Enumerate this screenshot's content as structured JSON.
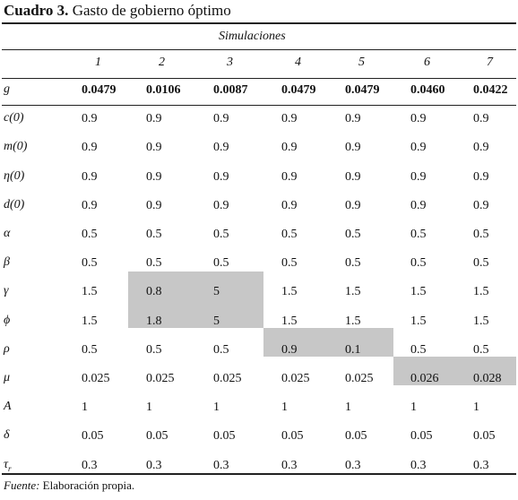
{
  "table": {
    "label": "Cuadro 3.",
    "title": "Gasto de gobierno óptimo",
    "group_header": "Simulaciones",
    "columns": [
      "1",
      "2",
      "3",
      "4",
      "5",
      "6",
      "7"
    ],
    "rows": [
      {
        "param": "g",
        "sub": "",
        "values": [
          "0.0479",
          "0.0106",
          "0.0087",
          "0.0479",
          "0.0479",
          "0.0460",
          "0.0422"
        ]
      },
      {
        "param": "c(0)",
        "sub": "",
        "values": [
          "0.9",
          "0.9",
          "0.9",
          "0.9",
          "0.9",
          "0.9",
          "0.9"
        ]
      },
      {
        "param": "m(0)",
        "sub": "",
        "values": [
          "0.9",
          "0.9",
          "0.9",
          "0.9",
          "0.9",
          "0.9",
          "0.9"
        ]
      },
      {
        "param": "η(0)",
        "sub": "",
        "values": [
          "0.9",
          "0.9",
          "0.9",
          "0.9",
          "0.9",
          "0.9",
          "0.9"
        ]
      },
      {
        "param": "d(0)",
        "sub": "",
        "values": [
          "0.9",
          "0.9",
          "0.9",
          "0.9",
          "0.9",
          "0.9",
          "0.9"
        ]
      },
      {
        "param": "α",
        "sub": "",
        "values": [
          "0.5",
          "0.5",
          "0.5",
          "0.5",
          "0.5",
          "0.5",
          "0.5"
        ]
      },
      {
        "param": "β",
        "sub": "",
        "values": [
          "0.5",
          "0.5",
          "0.5",
          "0.5",
          "0.5",
          "0.5",
          "0.5"
        ]
      },
      {
        "param": "γ",
        "sub": "",
        "values": [
          "1.5",
          "0.8",
          "5",
          "1.5",
          "1.5",
          "1.5",
          "1.5"
        ]
      },
      {
        "param": "ϕ",
        "sub": "",
        "values": [
          "1.5",
          "1.8",
          "5",
          "1.5",
          "1.5",
          "1.5",
          "1.5"
        ]
      },
      {
        "param": "ρ",
        "sub": "",
        "values": [
          "0.5",
          "0.5",
          "0.5",
          "0.9",
          "0.1",
          "0.5",
          "0.5"
        ]
      },
      {
        "param": "μ",
        "sub": "",
        "values": [
          "0.025",
          "0.025",
          "0.025",
          "0.025",
          "0.025",
          "0.026",
          "0.028"
        ]
      },
      {
        "param": "A",
        "sub": "",
        "values": [
          "1",
          "1",
          "1",
          "1",
          "1",
          "1",
          "1"
        ]
      },
      {
        "param": "δ",
        "sub": "",
        "values": [
          "0.05",
          "0.05",
          "0.05",
          "0.05",
          "0.05",
          "0.05",
          "0.05"
        ]
      },
      {
        "param": "τ",
        "sub": "r",
        "values": [
          "0.3",
          "0.3",
          "0.3",
          "0.3",
          "0.3",
          "0.3",
          "0.3"
        ]
      }
    ],
    "highlight_color": "#c7c7c7"
  },
  "footnote": {
    "label": "Fuente:",
    "text": "Elaboración propia."
  }
}
